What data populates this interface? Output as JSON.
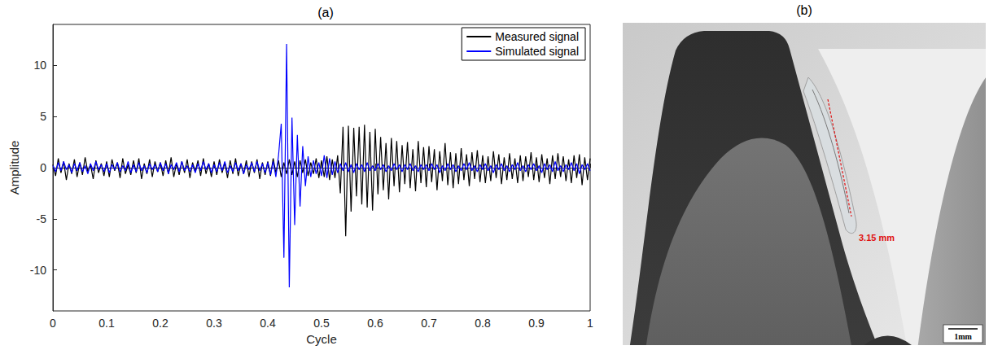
{
  "chart_data": {
    "type": "line",
    "title": "(a)",
    "x_label": "Cycle",
    "y_label": "Amplitude",
    "x": [
      0,
      0.005,
      0.01,
      0.015,
      0.02,
      0.025,
      0.03,
      0.035,
      0.04,
      0.045,
      0.05,
      0.055,
      0.06,
      0.065,
      0.07,
      0.075,
      0.08,
      0.085,
      0.09,
      0.095,
      0.1,
      0.105,
      0.11,
      0.115,
      0.12,
      0.125,
      0.13,
      0.135,
      0.14,
      0.145,
      0.15,
      0.155,
      0.16,
      0.165,
      0.17,
      0.175,
      0.18,
      0.185,
      0.19,
      0.195,
      0.2,
      0.205,
      0.21,
      0.215,
      0.22,
      0.225,
      0.23,
      0.235,
      0.24,
      0.245,
      0.25,
      0.255,
      0.26,
      0.265,
      0.27,
      0.275,
      0.28,
      0.285,
      0.29,
      0.295,
      0.3,
      0.305,
      0.31,
      0.315,
      0.32,
      0.325,
      0.33,
      0.335,
      0.34,
      0.345,
      0.35,
      0.355,
      0.36,
      0.365,
      0.37,
      0.375,
      0.38,
      0.385,
      0.39,
      0.395,
      0.4,
      0.405,
      0.41,
      0.415,
      0.42,
      0.425,
      0.43,
      0.435,
      0.44,
      0.445,
      0.45,
      0.455,
      0.46,
      0.465,
      0.47,
      0.475,
      0.48,
      0.485,
      0.49,
      0.495,
      0.5,
      0.505,
      0.51,
      0.515,
      0.52,
      0.525,
      0.53,
      0.535,
      0.54,
      0.545,
      0.55,
      0.555,
      0.56,
      0.565,
      0.57,
      0.575,
      0.58,
      0.585,
      0.59,
      0.595,
      0.6,
      0.605,
      0.61,
      0.615,
      0.62,
      0.625,
      0.63,
      0.635,
      0.64,
      0.645,
      0.65,
      0.655,
      0.66,
      0.665,
      0.67,
      0.675,
      0.68,
      0.685,
      0.69,
      0.695,
      0.7,
      0.705,
      0.71,
      0.715,
      0.72,
      0.725,
      0.73,
      0.735,
      0.74,
      0.745,
      0.75,
      0.755,
      0.76,
      0.765,
      0.77,
      0.775,
      0.78,
      0.785,
      0.79,
      0.795,
      0.8,
      0.805,
      0.81,
      0.815,
      0.82,
      0.825,
      0.83,
      0.835,
      0.84,
      0.845,
      0.85,
      0.855,
      0.86,
      0.865,
      0.87,
      0.875,
      0.88,
      0.885,
      0.89,
      0.895,
      0.9,
      0.905,
      0.91,
      0.915,
      0.92,
      0.925,
      0.93,
      0.935,
      0.94,
      0.945,
      0.95,
      0.955,
      0.96,
      0.965,
      0.97,
      0.975,
      0.98,
      0.985,
      0.99,
      0.995,
      1
    ],
    "series": [
      {
        "name": "Measured signal",
        "color": "#000000",
        "values": [
          0.3,
          -0.8,
          0.9,
          -0.5,
          0.6,
          -1.2,
          0.4,
          -0.6,
          0.8,
          -0.9,
          0.5,
          -0.7,
          1.0,
          -0.4,
          0.3,
          -1.1,
          0.7,
          -0.5,
          0.4,
          -0.8,
          0.6,
          -0.9,
          0.8,
          -0.3,
          0.5,
          -1.0,
          0.9,
          -0.6,
          0.3,
          -0.7,
          0.7,
          -0.5,
          0.9,
          -1.1,
          0.4,
          -0.6,
          0.8,
          -0.9,
          0.6,
          -0.4,
          0.5,
          -0.8,
          0.7,
          -0.6,
          1.0,
          -0.9,
          0.4,
          -0.7,
          0.6,
          -0.5,
          0.8,
          -1.0,
          0.5,
          -0.4,
          0.7,
          -0.8,
          0.9,
          -0.6,
          0.4,
          -0.9,
          0.6,
          -0.7,
          0.8,
          -0.5,
          0.5,
          -1.0,
          0.7,
          -0.6,
          0.9,
          -0.8,
          0.4,
          -0.6,
          0.7,
          -0.9,
          0.6,
          -0.5,
          0.8,
          -1.1,
          0.5,
          -0.7,
          0.6,
          -0.8,
          0.9,
          -0.5,
          0.7,
          -0.9,
          0.5,
          -0.6,
          0.8,
          -0.7,
          0.6,
          -0.9,
          0.7,
          -0.5,
          0.8,
          -0.8,
          0.5,
          -0.6,
          0.9,
          -1.0,
          0.7,
          -0.9,
          1.1,
          -1.2,
          0.8,
          -1.0,
          1.2,
          -2.5,
          4.0,
          -6.7,
          4.1,
          -4.3,
          3.9,
          -2.8,
          4.0,
          -3.6,
          4.2,
          -3.9,
          3.5,
          -4.2,
          3.8,
          -2.6,
          3.0,
          -2.2,
          2.4,
          -3.1,
          2.9,
          -1.8,
          2.6,
          -2.4,
          2.2,
          -1.6,
          2.5,
          -2.0,
          1.8,
          -2.3,
          2.6,
          -1.5,
          2.0,
          -1.9,
          2.1,
          -1.4,
          1.8,
          -2.2,
          1.6,
          -1.3,
          2.4,
          -1.7,
          1.5,
          -2.0,
          1.4,
          -1.6,
          1.9,
          -1.2,
          1.3,
          -1.8,
          1.5,
          -1.1,
          1.7,
          -1.4,
          1.2,
          -1.5,
          1.1,
          -1.3,
          1.6,
          -1.0,
          1.3,
          -1.6,
          1.0,
          -1.2,
          1.4,
          -1.1,
          0.9,
          -1.5,
          1.2,
          -1.3,
          1.1,
          -0.9,
          1.5,
          -1.2,
          1.0,
          -1.4,
          1.3,
          -1.0,
          0.9,
          -1.6,
          1.2,
          -1.1,
          1.4,
          -0.9,
          1.1,
          -1.3,
          0.8,
          -1.5,
          1.2,
          -1.0,
          1.3,
          -1.7,
          1.0,
          -1.2,
          0.9
        ]
      },
      {
        "name": "Simulated signal",
        "color": "#0000ff",
        "values": [
          0.2,
          -0.4,
          0.5,
          -0.3,
          0.6,
          -0.2,
          0.3,
          -0.5,
          0.4,
          -0.3,
          0.5,
          -0.4,
          0.2,
          -0.6,
          0.4,
          -0.3,
          0.6,
          -0.2,
          0.3,
          -0.4,
          0.4,
          -0.5,
          0.3,
          -0.2,
          0.5,
          -0.4,
          0.2,
          -0.3,
          0.6,
          -0.5,
          0.3,
          -0.4,
          0.5,
          -0.3,
          0.2,
          -0.5,
          0.4,
          -0.2,
          0.3,
          -0.4,
          0.5,
          -0.3,
          0.4,
          -0.6,
          0.3,
          -0.2,
          0.5,
          -0.4,
          0.6,
          -0.3,
          0.2,
          -0.4,
          0.3,
          -0.5,
          0.4,
          -0.3,
          0.6,
          -0.2,
          0.4,
          -0.5,
          0.3,
          -0.4,
          0.5,
          -0.3,
          0.6,
          -0.5,
          0.2,
          -0.4,
          0.5,
          -0.3,
          0.4,
          -0.6,
          0.3,
          -0.2,
          0.5,
          -0.4,
          0.6,
          -0.3,
          0.4,
          -0.5,
          0.5,
          -0.7,
          0.6,
          -0.9,
          1.2,
          4.3,
          -8.8,
          12.1,
          -11.7,
          4.9,
          -5.6,
          3.2,
          -3.8,
          2.1,
          -1.8,
          1.1,
          -0.9,
          0.7,
          -0.6,
          0.5,
          -0.8,
          1.2,
          -1.0,
          0.9,
          -0.7,
          0.6,
          -0.5,
          0.4,
          -0.3,
          0.5,
          -0.4,
          0.3,
          -0.5,
          0.4,
          -0.2,
          0.3,
          -0.4,
          0.5,
          -0.3,
          0.2,
          -0.3,
          0.4,
          -0.2,
          0.3,
          -0.4,
          0.2,
          -0.3,
          0.4,
          -0.2,
          0.3,
          -0.4,
          0.3,
          -0.2,
          0.4,
          -0.3,
          0.2,
          -0.4,
          0.3,
          -0.2,
          0.3,
          -0.3,
          0.4,
          -0.2,
          0.3,
          -0.5,
          0.2,
          -0.3,
          0.4,
          -0.2,
          0.3,
          -0.4,
          0.2,
          -0.3,
          0.4,
          -0.2,
          0.5,
          -0.3,
          0.2,
          -0.4,
          0.3,
          -0.2,
          0.4,
          -0.3,
          0.2,
          -0.5,
          0.3,
          -0.2,
          0.4,
          -0.3,
          0.2,
          -0.4,
          0.3,
          -0.2,
          0.5,
          -0.3,
          0.2,
          -0.4,
          0.3,
          -0.2,
          0.4,
          -0.3,
          0.2,
          -0.5,
          0.4,
          -0.2,
          0.3,
          -0.4,
          0.6,
          -0.3,
          0.2,
          -0.4,
          0.3,
          -0.2,
          0.5,
          -0.3,
          0.4,
          -0.6,
          0.3,
          -0.2,
          0.4,
          -0.3
        ]
      }
    ],
    "xlim": [
      0,
      1
    ],
    "xticks": [
      0,
      0.1,
      0.2,
      0.3,
      0.4,
      0.5,
      0.6,
      0.7,
      0.8,
      0.9,
      1
    ],
    "ylim": [
      -14,
      14
    ],
    "yticks": [
      -10,
      -5,
      0,
      5,
      10
    ],
    "grid": false,
    "legend": "top-right"
  },
  "photo": {
    "title": "(b)",
    "measurement": "3.15 mm",
    "scale_bar": "1mm"
  }
}
